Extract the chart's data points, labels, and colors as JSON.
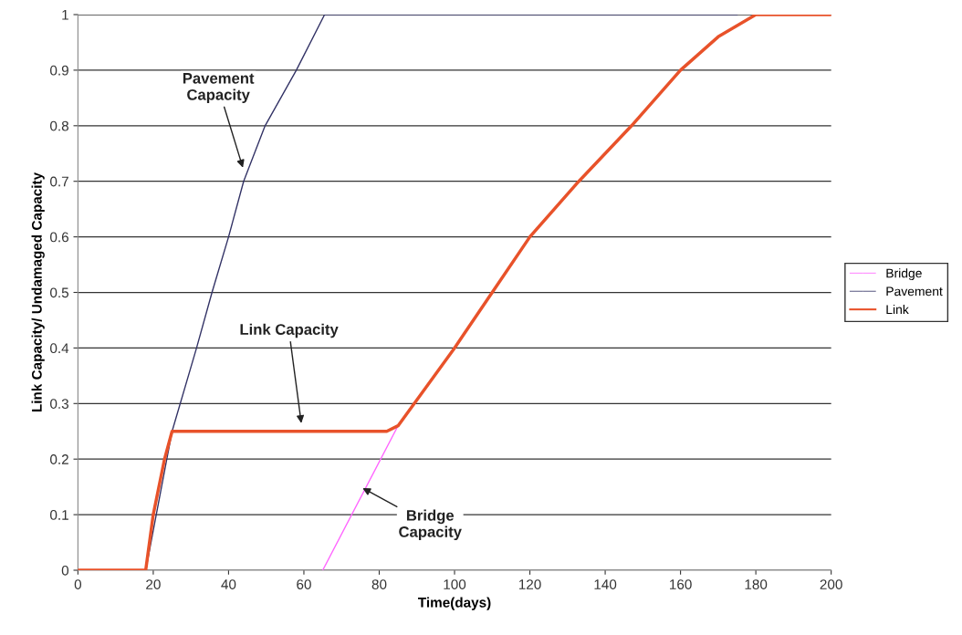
{
  "chart_data": {
    "type": "line",
    "xlabel": "Time(days)",
    "ylabel": "Link Capacity/ Undamaged Capacity",
    "xlim": [
      0,
      200
    ],
    "xticks": [
      0,
      20,
      40,
      60,
      80,
      100,
      120,
      140,
      160,
      180,
      200
    ],
    "ylim": [
      0,
      1
    ],
    "yticks": [
      0,
      0.1,
      0.2,
      0.3,
      0.4,
      0.5,
      0.6,
      0.7,
      0.8,
      0.9,
      1
    ],
    "grid": "y",
    "legend": "right",
    "marker": "none",
    "line_style": "solid",
    "series": [
      {
        "name": "Bridge",
        "color": "#ff66ff",
        "x": [
          65,
          85
        ],
        "values": [
          0,
          0.26
        ]
      },
      {
        "name": "Pavement",
        "color": "#333366",
        "x": [
          0,
          18,
          25,
          31.5,
          35.6,
          40,
          44,
          49.7,
          58,
          65.5,
          175
        ],
        "values": [
          0,
          0,
          0.25,
          0.4,
          0.5,
          0.6,
          0.7,
          0.8,
          0.9,
          1,
          1
        ]
      },
      {
        "name": "Link",
        "color": "#e8522a",
        "x": [
          0,
          18,
          20,
          23,
          25,
          82,
          85,
          100,
          110,
          120,
          133,
          147,
          160,
          170,
          180,
          200
        ],
        "values": [
          0,
          0,
          0.1,
          0.2,
          0.25,
          0.25,
          0.26,
          0.4,
          0.5,
          0.6,
          0.7,
          0.8,
          0.9,
          0.96,
          1,
          1
        ]
      }
    ],
    "annotations": [
      {
        "text": "Pavement\nCapacity",
        "x": 44,
        "y": 0.72
      },
      {
        "text": "Link Capacity",
        "x": 59.4,
        "y": 0.26
      },
      {
        "text": "Bridge\nCapacity",
        "x": 75,
        "y": 0.15
      }
    ]
  }
}
